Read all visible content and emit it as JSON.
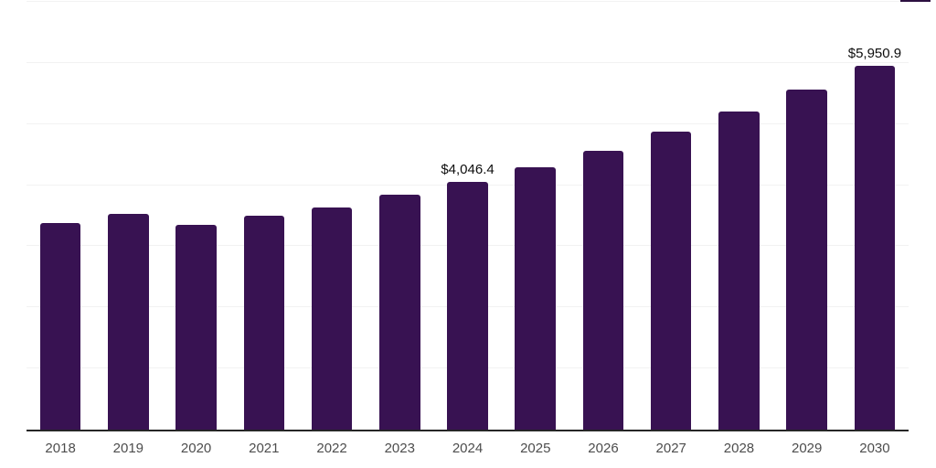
{
  "chart": {
    "background_color": "#ffffff",
    "bar_color": "#381252",
    "grid_color": "#f2f2f2",
    "axis_color": "#262626",
    "tick_label_color": "#4d4d4d",
    "value_label_color": "#0d0d0d"
  },
  "chart_data": {
    "type": "bar",
    "title": "",
    "xlabel": "",
    "ylabel": "",
    "categories": [
      "2018",
      "2019",
      "2020",
      "2021",
      "2022",
      "2023",
      "2024",
      "2025",
      "2026",
      "2027",
      "2028",
      "2029",
      "2030"
    ],
    "values": [
      3375,
      3525,
      3350,
      3495,
      3630,
      3840,
      4046.4,
      4290,
      4565,
      4870,
      5200,
      5560,
      5950.9
    ],
    "data_labels": {
      "2024": "$4,046.4",
      "2030": "$5,950.9"
    },
    "ylim": [
      0,
      7000
    ],
    "gridline_interval": 1000,
    "grid": "horizontal only, no y-axis tick labels",
    "legend_position": "none"
  }
}
